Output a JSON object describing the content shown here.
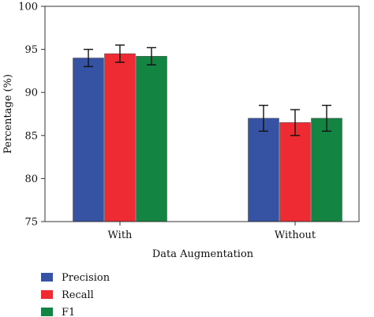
{
  "chart_data": {
    "type": "bar",
    "title": "",
    "xlabel": "Data Augmentation",
    "ylabel": "Percentage (%)",
    "categories": [
      "With",
      "Without"
    ],
    "ylim": [
      75,
      100
    ],
    "yticks": [
      "75",
      "80",
      "85",
      "90",
      "95",
      "100"
    ],
    "grid": false,
    "legend_position": "bottom-left",
    "series": [
      {
        "name": "Precision",
        "color": "#3552a3",
        "values": [
          94.0,
          87.0
        ],
        "errors": [
          1.0,
          1.5
        ]
      },
      {
        "name": "Recall",
        "color": "#ee2a33",
        "values": [
          94.5,
          86.5
        ],
        "errors": [
          1.0,
          1.5
        ]
      },
      {
        "name": "F1",
        "color": "#148442",
        "values": [
          94.2,
          87.0
        ],
        "errors": [
          1.0,
          1.5
        ]
      }
    ]
  }
}
